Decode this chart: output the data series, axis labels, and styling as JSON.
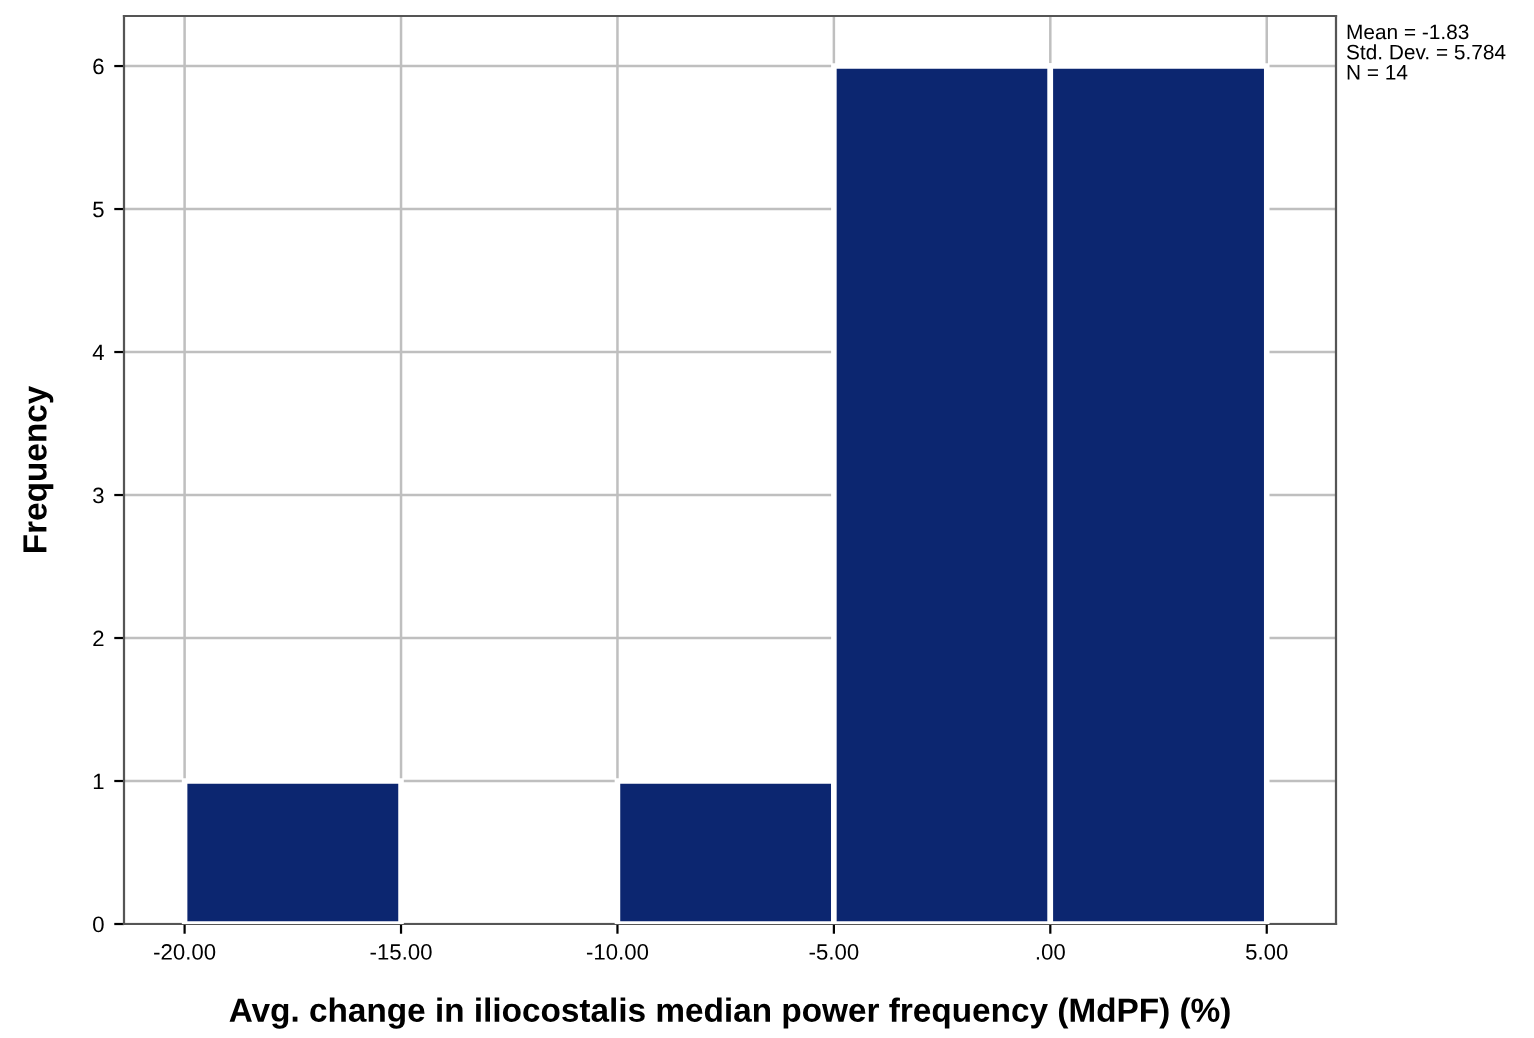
{
  "chart_data": {
    "type": "histogram",
    "xlabel": "Avg. change in iliocostalis median power frequency (MdPF) (%)",
    "ylabel": "Frequency",
    "bins": [
      -20,
      -15,
      -10,
      -5,
      0,
      5
    ],
    "values": [
      1,
      0,
      1,
      6,
      6
    ],
    "color": "#0c2670",
    "xlim": [
      -21.4,
      6.6
    ],
    "ylim": [
      0,
      6.35
    ],
    "xticks": [
      {
        "value": -20,
        "label": "-20.00"
      },
      {
        "value": -15,
        "label": "-15.00"
      },
      {
        "value": -10,
        "label": "-10.00"
      },
      {
        "value": -5,
        "label": "-5.00"
      },
      {
        "value": 0,
        "label": ".00"
      },
      {
        "value": 5,
        "label": "5.00"
      }
    ],
    "yticks": [
      0,
      1,
      2,
      3,
      4,
      5,
      6
    ],
    "grid": true,
    "annotations": [
      "Mean = -1.83",
      "Std. Dev. = 5.784",
      "N = 14"
    ]
  }
}
